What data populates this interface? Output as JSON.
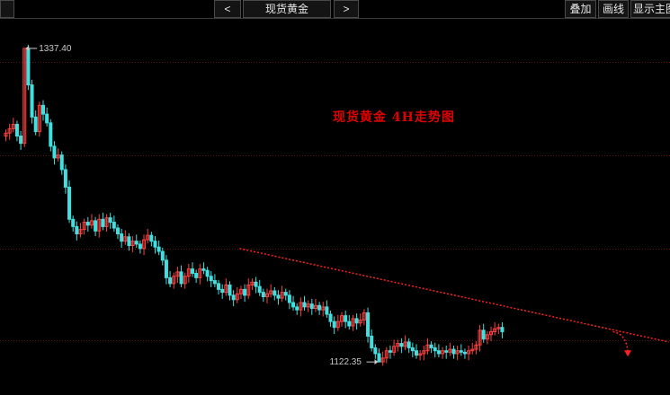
{
  "toolbar": {
    "left_stub": "",
    "prev_label": "<",
    "title": "现货黄金",
    "next_label": ">",
    "overlay_label": "叠加",
    "draw_label": "画线",
    "show_label": "显示主图"
  },
  "colors": {
    "background": "#000000",
    "grid": "#5a1414",
    "up": "#ff4040",
    "down": "#40e0e0",
    "trend": "#ff2020",
    "text": "#c8c8c8"
  },
  "chart_data": {
    "type": "candlestick",
    "title": "",
    "annotation": "现货黄金   4H走势图",
    "high_label": "1337.40",
    "low_label": "1122.35",
    "ylim": [
      1112,
      1348
    ],
    "grid": true,
    "y_gridlines": [
      1328,
      1264,
      1200,
      1137
    ],
    "closes": [
      1279,
      1282,
      1285,
      1277,
      1272,
      1337,
      1312,
      1290,
      1280,
      1298,
      1292,
      1286,
      1270,
      1262,
      1264,
      1254,
      1242,
      1220,
      1215,
      1210,
      1213,
      1218,
      1216,
      1219,
      1212,
      1220,
      1215,
      1221,
      1218,
      1214,
      1210,
      1205,
      1208,
      1202,
      1205,
      1203,
      1200,
      1206,
      1209,
      1205,
      1201,
      1198,
      1192,
      1180,
      1176,
      1181,
      1184,
      1176,
      1181,
      1186,
      1183,
      1180,
      1186,
      1185,
      1181,
      1178,
      1176,
      1172,
      1170,
      1175,
      1168,
      1165,
      1169,
      1172,
      1168,
      1175,
      1177,
      1174,
      1170,
      1167,
      1169,
      1171,
      1168,
      1166,
      1170,
      1168,
      1163,
      1160,
      1158,
      1163,
      1160,
      1162,
      1159,
      1161,
      1158,
      1160,
      1155,
      1150,
      1146,
      1150,
      1154,
      1150,
      1147,
      1152,
      1149,
      1151,
      1156,
      1140,
      1132,
      1128,
      1122.35,
      1125,
      1130,
      1129,
      1133,
      1135,
      1133,
      1136,
      1132,
      1130,
      1127,
      1128,
      1130,
      1134,
      1132,
      1130,
      1128,
      1130,
      1129,
      1131,
      1128,
      1130,
      1129,
      1128,
      1130,
      1131,
      1134,
      1144,
      1138,
      1141,
      1143,
      1145,
      1146,
      1143
    ],
    "trend_line": [
      {
        "bar": 63,
        "y": 1200
      },
      {
        "bar": 178,
        "y": 1136
      }
    ],
    "forecast_arrow": [
      {
        "bar": 163,
        "y": 1143
      },
      {
        "bar": 167,
        "y": 1126
      }
    ]
  }
}
